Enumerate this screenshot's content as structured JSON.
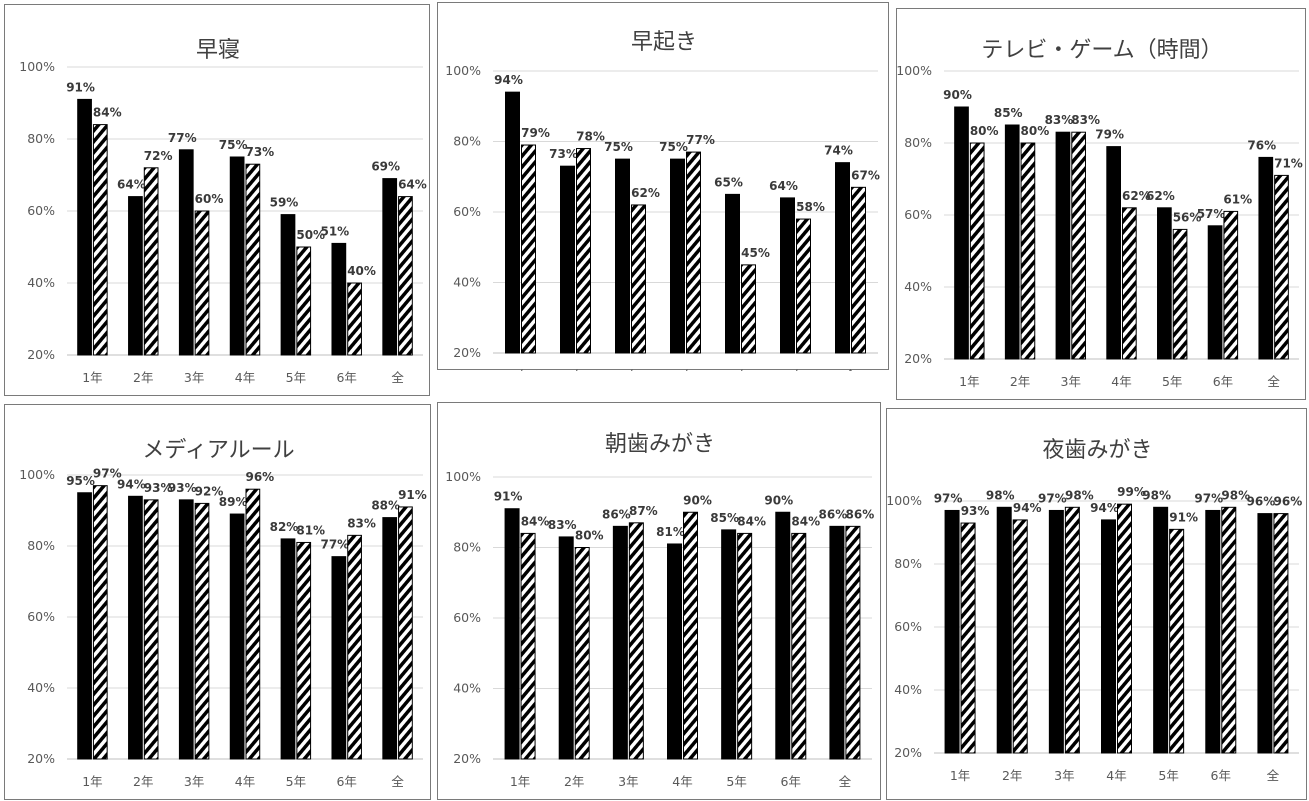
{
  "colors": {
    "series_a": "#000000",
    "series_b_hatch": "#000000",
    "grid": "#d9d9d9",
    "frame": "#7a7a7a"
  },
  "chart_data": [
    {
      "type": "bar",
      "title": "早寝",
      "categories": [
        "1年",
        "2年",
        "3年",
        "4年",
        "5年",
        "6年",
        "全"
      ],
      "series": [
        {
          "pattern": "solid",
          "values": [
            91,
            64,
            77,
            75,
            59,
            51,
            69
          ],
          "labels": [
            "91%",
            "64%",
            "77%",
            "75%",
            "59%",
            "51%",
            "69%"
          ]
        },
        {
          "pattern": "hatched",
          "values": [
            84,
            72,
            60,
            73,
            50,
            40,
            64
          ],
          "labels": [
            "84%",
            "72%",
            "60%",
            "73%",
            "50%",
            "40%",
            "64%"
          ]
        }
      ],
      "ylim": [
        20,
        100
      ],
      "yticks": [
        "20%",
        "40%",
        "60%",
        "80%",
        "100%"
      ],
      "grid": true
    },
    {
      "type": "bar",
      "title": "早起き",
      "categories": [
        "1年",
        "2年",
        "3年",
        "4年",
        "5年",
        "6年",
        "全"
      ],
      "series": [
        {
          "pattern": "solid",
          "values": [
            94,
            73,
            75,
            75,
            65,
            64,
            74
          ],
          "labels": [
            "94%",
            "73%",
            "75%",
            "75%",
            "65%",
            "64%",
            "74%"
          ]
        },
        {
          "pattern": "hatched",
          "values": [
            79,
            78,
            62,
            77,
            45,
            58,
            67
          ],
          "labels": [
            "79%",
            "78%",
            "62%",
            "77%",
            "45%",
            "58%",
            "67%"
          ]
        }
      ],
      "ylim": [
        20,
        100
      ],
      "yticks": [
        "20%",
        "40%",
        "60%",
        "80%",
        "100%"
      ],
      "grid": true
    },
    {
      "type": "bar",
      "title": "テレビ・ゲーム（時間）",
      "categories": [
        "1年",
        "2年",
        "3年",
        "4年",
        "5年",
        "6年",
        "全"
      ],
      "series": [
        {
          "pattern": "solid",
          "values": [
            90,
            85,
            83,
            79,
            62,
            57,
            76
          ],
          "labels": [
            "90%",
            "85%",
            "83%",
            "79%",
            "62%",
            "57%",
            "76%"
          ]
        },
        {
          "pattern": "hatched",
          "values": [
            80,
            80,
            83,
            62,
            56,
            61,
            71
          ],
          "labels": [
            "80%",
            "80%",
            "83%",
            "62%",
            "56%",
            "61%",
            "71%"
          ]
        }
      ],
      "ylim": [
        20,
        100
      ],
      "yticks": [
        "20%",
        "40%",
        "60%",
        "80%",
        "100%"
      ],
      "grid": true
    },
    {
      "type": "bar",
      "title": "メディアルール",
      "categories": [
        "1年",
        "2年",
        "3年",
        "4年",
        "5年",
        "6年",
        "全"
      ],
      "series": [
        {
          "pattern": "solid",
          "values": [
            95,
            94,
            93,
            89,
            82,
            77,
            88
          ],
          "labels": [
            "95%",
            "94%",
            "93%",
            "89%",
            "82%",
            "77%",
            "88%"
          ]
        },
        {
          "pattern": "hatched",
          "values": [
            97,
            93,
            92,
            96,
            81,
            83,
            91
          ],
          "labels": [
            "97%",
            "93%",
            "92%",
            "96%",
            "81%",
            "83%",
            "91%"
          ]
        }
      ],
      "ylim": [
        20,
        100
      ],
      "yticks": [
        "20%",
        "40%",
        "60%",
        "80%",
        "100%"
      ],
      "grid": true
    },
    {
      "type": "bar",
      "title": "朝歯みがき",
      "categories": [
        "1年",
        "2年",
        "3年",
        "4年",
        "5年",
        "6年",
        "全"
      ],
      "series": [
        {
          "pattern": "solid",
          "values": [
            91,
            83,
            86,
            81,
            85,
            90,
            86
          ],
          "labels": [
            "91%",
            "83%",
            "86%",
            "81%",
            "85%",
            "90%",
            "86%"
          ]
        },
        {
          "pattern": "hatched",
          "values": [
            84,
            80,
            87,
            90,
            84,
            84,
            86
          ],
          "labels": [
            "84%",
            "80%",
            "87%",
            "90%",
            "84%",
            "84%",
            "86%"
          ]
        }
      ],
      "ylim": [
        20,
        100
      ],
      "yticks": [
        "20%",
        "40%",
        "60%",
        "80%",
        "100%"
      ],
      "grid": true
    },
    {
      "type": "bar",
      "title": "夜歯みがき",
      "categories": [
        "1年",
        "2年",
        "3年",
        "4年",
        "5年",
        "6年",
        "全"
      ],
      "series": [
        {
          "pattern": "solid",
          "values": [
            97,
            98,
            97,
            94,
            98,
            97,
            96
          ],
          "labels": [
            "97%",
            "98%",
            "97%",
            "94%",
            "98%",
            "97%",
            "96%"
          ]
        },
        {
          "pattern": "hatched",
          "values": [
            93,
            94,
            98,
            99,
            91,
            98,
            96
          ],
          "labels": [
            "93%",
            "94%",
            "98%",
            "99%",
            "91%",
            "98%",
            "96%"
          ]
        }
      ],
      "ylim": [
        20,
        100
      ],
      "yticks": [
        "20%",
        "40%",
        "60%",
        "80%",
        "100%"
      ],
      "grid": true
    }
  ]
}
